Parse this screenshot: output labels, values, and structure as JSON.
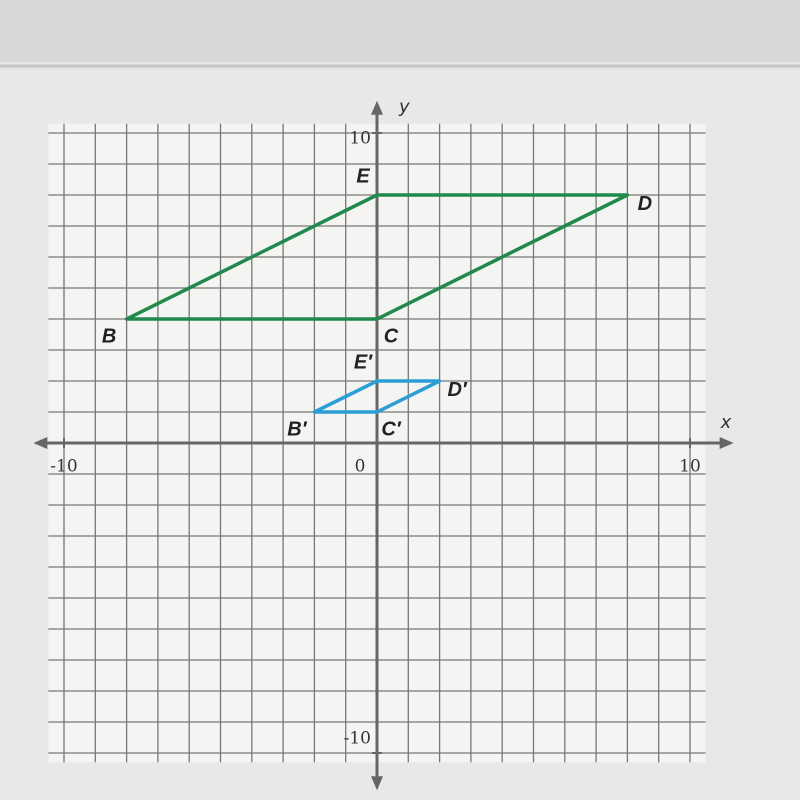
{
  "chart_data": {
    "type": "polygon",
    "xlim": [
      -10.5,
      10.5
    ],
    "ylim": [
      -10.3,
      10.3
    ],
    "xticks": [
      -10,
      0,
      10
    ],
    "yticks": [
      -10,
      10
    ],
    "x_label": "x",
    "y_label": "y",
    "grid": true,
    "grid_step": 1,
    "series": [
      {
        "color": "#1f8a4c",
        "x": [
          -8,
          0,
          8,
          0
        ],
        "y": [
          4,
          4,
          8,
          8
        ],
        "labels": [
          "B",
          "C",
          "D",
          "E"
        ]
      },
      {
        "color": "#2a9fd6",
        "x": [
          -2,
          0,
          2,
          0
        ],
        "y": [
          1,
          1,
          2,
          2
        ],
        "labels": [
          "B′",
          "C′",
          "D′",
          "E′"
        ]
      }
    ]
  }
}
